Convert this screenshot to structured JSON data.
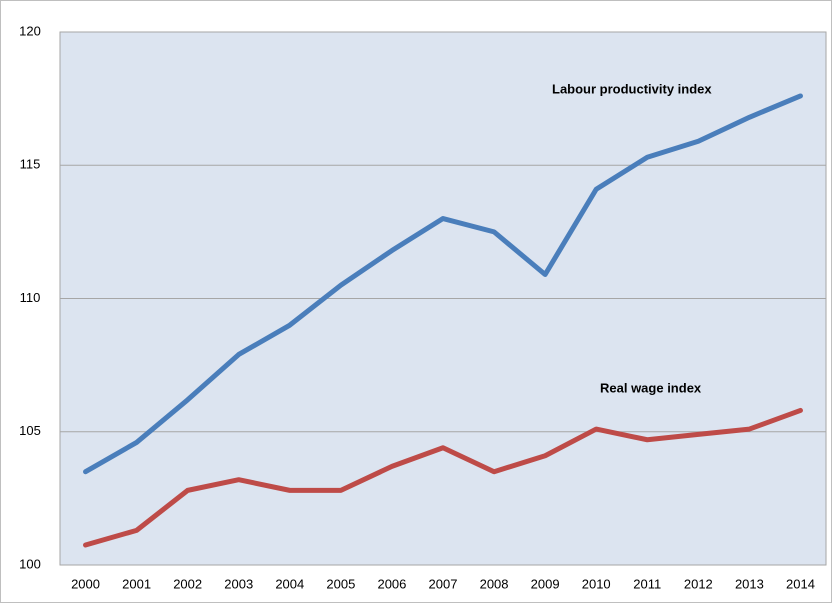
{
  "chart_data": {
    "type": "line",
    "categories": [
      "2000",
      "2001",
      "2002",
      "2003",
      "2004",
      "2005",
      "2006",
      "2007",
      "2008",
      "2009",
      "2010",
      "2011",
      "2012",
      "2013",
      "2014"
    ],
    "series": [
      {
        "name": "Labour productivity index",
        "color": "#4a7ebb",
        "values": [
          103.5,
          104.6,
          106.2,
          107.9,
          109.0,
          110.5,
          111.8,
          113.0,
          112.5,
          110.9,
          114.1,
          115.3,
          115.9,
          116.8,
          117.6
        ]
      },
      {
        "name": "Real wage index",
        "color": "#be4b48",
        "values": [
          100.75,
          101.3,
          102.8,
          103.2,
          102.8,
          102.8,
          103.7,
          104.4,
          103.5,
          104.1,
          105.1,
          104.7,
          104.9,
          105.1,
          105.8
        ]
      }
    ],
    "ylim": [
      100,
      120
    ],
    "yticks": [
      100,
      105,
      110,
      115,
      120
    ],
    "grid": true
  }
}
